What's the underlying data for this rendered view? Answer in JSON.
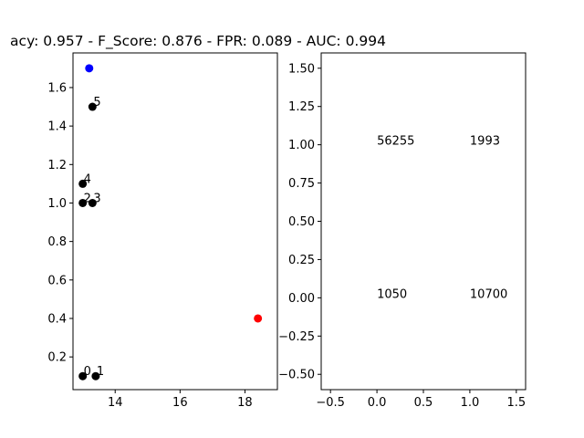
{
  "title": "acy: 0.957 - F_Score: 0.876 - FPR: 0.089 - AUC: 0.994",
  "chart_data": [
    {
      "type": "scatter",
      "xlim": [
        12.7,
        19.0
      ],
      "ylim": [
        0.03,
        1.78
      ],
      "xticks": [
        14,
        16,
        18
      ],
      "xtick_labels": [
        "14",
        "16",
        "18"
      ],
      "yticks": [
        0.2,
        0.4,
        0.6,
        0.8,
        1.0,
        1.2,
        1.4,
        1.6
      ],
      "ytick_labels": [
        "0.2",
        "0.4",
        "0.6",
        "0.8",
        "1.0",
        "1.2",
        "1.4",
        "1.6"
      ],
      "points": [
        {
          "x": 13.0,
          "y": 0.1,
          "color": "#000000",
          "label": "0"
        },
        {
          "x": 13.4,
          "y": 0.1,
          "color": "#000000",
          "label": "1"
        },
        {
          "x": 13.0,
          "y": 1.0,
          "color": "#000000",
          "label": "2"
        },
        {
          "x": 13.3,
          "y": 1.0,
          "color": "#000000",
          "label": "3"
        },
        {
          "x": 13.0,
          "y": 1.1,
          "color": "#000000",
          "label": "4"
        },
        {
          "x": 13.3,
          "y": 1.5,
          "color": "#000000",
          "label": "5"
        },
        {
          "x": 13.2,
          "y": 1.7,
          "color": "#0000ff",
          "label": ""
        },
        {
          "x": 18.4,
          "y": 0.4,
          "color": "#ff0000",
          "label": ""
        }
      ]
    },
    {
      "type": "table",
      "xlim": [
        -0.6,
        1.6
      ],
      "ylim": [
        -0.6,
        1.6
      ],
      "xticks": [
        -0.5,
        0.0,
        0.5,
        1.0,
        1.5
      ],
      "xtick_labels": [
        "−0.5",
        "0.0",
        "0.5",
        "1.0",
        "1.5"
      ],
      "yticks": [
        -0.5,
        -0.25,
        0.0,
        0.25,
        0.5,
        0.75,
        1.0,
        1.25,
        1.5
      ],
      "ytick_labels": [
        "−0.50",
        "−0.25",
        "0.00",
        "0.25",
        "0.50",
        "0.75",
        "1.00",
        "1.25",
        "1.50"
      ],
      "cells": [
        {
          "x": 0,
          "y": 1,
          "text": "56255"
        },
        {
          "x": 1,
          "y": 1,
          "text": "1993"
        },
        {
          "x": 0,
          "y": 0,
          "text": "1050"
        },
        {
          "x": 1,
          "y": 0,
          "text": "10700"
        }
      ]
    }
  ]
}
